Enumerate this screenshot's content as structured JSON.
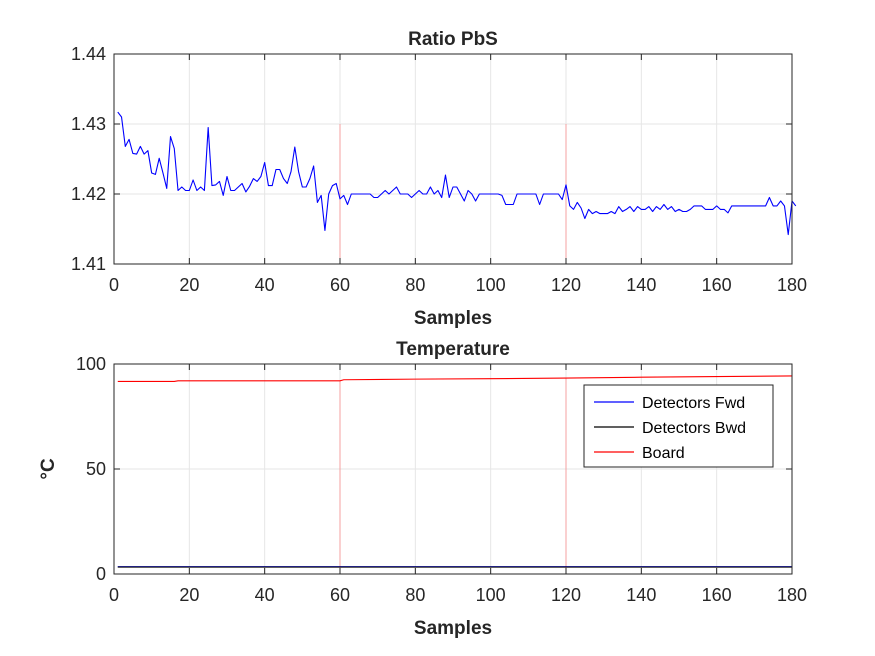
{
  "chart_data": [
    {
      "type": "line",
      "title": "Ratio PbS",
      "xlabel": "Samples",
      "ylabel": "",
      "xlim": [
        0,
        180
      ],
      "ylim": [
        1.41,
        1.44
      ],
      "xticks": [
        0,
        20,
        40,
        60,
        80,
        100,
        120,
        140,
        160,
        180
      ],
      "yticks": [
        1.41,
        1.42,
        1.43,
        1.44
      ],
      "ytick_labels": [
        "1.41",
        "1.42",
        "1.43",
        "1.44"
      ],
      "grid": true,
      "markers": [
        {
          "x": 60,
          "y_range": [
            1.41,
            1.43
          ],
          "color": "#f4a0a0"
        },
        {
          "x": 120,
          "y_range": [
            1.41,
            1.43
          ],
          "color": "#f4a0a0"
        },
        {
          "x": 180,
          "y_range": [
            1.41,
            1.43
          ],
          "color": "#f4a0a0"
        }
      ],
      "series": [
        {
          "color": "#0000ff",
          "values": [
            1.4317,
            1.431,
            1.4268,
            1.4278,
            1.4258,
            1.4257,
            1.4268,
            1.4257,
            1.4262,
            1.423,
            1.4228,
            1.4251,
            1.423,
            1.4208,
            1.4282,
            1.4265,
            1.4205,
            1.421,
            1.4205,
            1.4205,
            1.422,
            1.4205,
            1.421,
            1.4205,
            1.4295,
            1.4212,
            1.4213,
            1.4218,
            1.4198,
            1.4225,
            1.4205,
            1.4205,
            1.421,
            1.4215,
            1.4203,
            1.4211,
            1.4222,
            1.4218,
            1.4225,
            1.4245,
            1.4212,
            1.4212,
            1.4235,
            1.4235,
            1.4222,
            1.4215,
            1.4232,
            1.4267,
            1.4232,
            1.421,
            1.421,
            1.4222,
            1.424,
            1.4188,
            1.4198,
            1.4148,
            1.42,
            1.4212,
            1.4215,
            1.4193,
            1.4198,
            1.4185,
            1.42,
            1.42,
            1.42,
            1.42,
            1.42,
            1.42,
            1.4195,
            1.4195,
            1.42,
            1.4205,
            1.42,
            1.4205,
            1.421,
            1.42,
            1.42,
            1.42,
            1.4195,
            1.42,
            1.4205,
            1.42,
            1.42,
            1.421,
            1.42,
            1.4205,
            1.4195,
            1.4227,
            1.4195,
            1.421,
            1.421,
            1.42,
            1.419,
            1.4205,
            1.42,
            1.419,
            1.42,
            1.42,
            1.42,
            1.42,
            1.42,
            1.42,
            1.4198,
            1.4185,
            1.4185,
            1.4185,
            1.42,
            1.42,
            1.42,
            1.42,
            1.42,
            1.42,
            1.4185,
            1.42,
            1.42,
            1.42,
            1.42,
            1.42,
            1.4192,
            1.4213,
            1.4183,
            1.4178,
            1.4188,
            1.418,
            1.4165,
            1.4178,
            1.4172,
            1.4175,
            1.4172,
            1.4172,
            1.4172,
            1.4175,
            1.4172,
            1.4182,
            1.4175,
            1.4178,
            1.4182,
            1.4175,
            1.4182,
            1.4178,
            1.4178,
            1.4182,
            1.4175,
            1.4182,
            1.4178,
            1.4185,
            1.4178,
            1.4182,
            1.4175,
            1.4178,
            1.4175,
            1.4175,
            1.4178,
            1.4183,
            1.4183,
            1.4183,
            1.4178,
            1.4178,
            1.4178,
            1.4183,
            1.4178,
            1.4178,
            1.4173,
            1.4183,
            1.4183,
            1.4183,
            1.4183,
            1.4183,
            1.4183,
            1.4183,
            1.4183,
            1.4183,
            1.4183,
            1.4195,
            1.4183,
            1.4183,
            1.419,
            1.4183,
            1.4142,
            1.419,
            1.4183
          ]
        }
      ]
    },
    {
      "type": "line",
      "title": "Temperature",
      "xlabel": "Samples",
      "ylabel": "°C",
      "xlim": [
        0,
        180
      ],
      "ylim": [
        0,
        100
      ],
      "xticks": [
        0,
        20,
        40,
        60,
        80,
        100,
        120,
        140,
        160,
        180
      ],
      "yticks": [
        0,
        50,
        100
      ],
      "ytick_labels": [
        "0",
        "50",
        "100"
      ],
      "grid": true,
      "legend_position": "top-right",
      "markers": [
        {
          "x": 60,
          "y_range": [
            0,
            92
          ],
          "color": "#f4a0a0"
        },
        {
          "x": 120,
          "y_range": [
            0,
            93.5
          ],
          "color": "#f4a0a0"
        },
        {
          "x": 180,
          "y_range": [
            0,
            94.3
          ],
          "color": "#f4a0a0"
        }
      ],
      "series": [
        {
          "name": "Detectors Fwd",
          "color": "#0000ff",
          "x": [
            1,
            180
          ],
          "values": [
            3.5,
            3.5
          ]
        },
        {
          "name": "Detectors Bwd",
          "color": "#000000",
          "x": [
            1,
            180
          ],
          "values": [
            3.3,
            3.3
          ]
        },
        {
          "name": "Board",
          "color": "#ff0000",
          "x": [
            1,
            16,
            17,
            60,
            61,
            80,
            100,
            120,
            140,
            160,
            180
          ],
          "values": [
            91.7,
            91.7,
            92.0,
            92.0,
            92.5,
            92.8,
            93.0,
            93.3,
            93.7,
            94.0,
            94.3
          ]
        }
      ]
    }
  ]
}
